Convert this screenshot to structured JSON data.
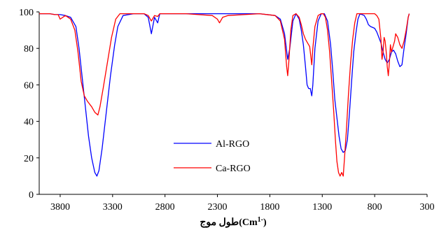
{
  "chart_data": {
    "type": "line",
    "title": "",
    "xlabel": "طول موج(Cm-1)",
    "xlabel_parts": {
      "main": "طول موج(Cm",
      "sup": "1-",
      "close": ")"
    },
    "ylabel": "",
    "xlim": [
      4000,
      300
    ],
    "ylim": [
      0,
      100
    ],
    "x_ticks": [
      3800,
      3300,
      2800,
      2300,
      1800,
      1300,
      800,
      300
    ],
    "y_ticks": [
      0,
      20,
      40,
      60,
      80,
      100
    ],
    "grid": false,
    "legend": "center",
    "series": [
      {
        "name": "Al-RGO",
        "color": "#0000ff",
        "points": [
          [
            4000,
            99
          ],
          [
            3900,
            99
          ],
          [
            3850,
            98.5
          ],
          [
            3800,
            98.5
          ],
          [
            3750,
            98
          ],
          [
            3700,
            97
          ],
          [
            3650,
            92
          ],
          [
            3620,
            80
          ],
          [
            3590,
            64
          ],
          [
            3560,
            48
          ],
          [
            3530,
            32
          ],
          [
            3500,
            20
          ],
          [
            3470,
            12
          ],
          [
            3450,
            10
          ],
          [
            3430,
            13
          ],
          [
            3400,
            25
          ],
          [
            3360,
            45
          ],
          [
            3320,
            65
          ],
          [
            3280,
            82
          ],
          [
            3250,
            92
          ],
          [
            3200,
            98
          ],
          [
            3100,
            99
          ],
          [
            3000,
            99
          ],
          [
            2960,
            97
          ],
          [
            2930,
            88
          ],
          [
            2900,
            97
          ],
          [
            2870,
            94
          ],
          [
            2850,
            99
          ],
          [
            2700,
            99
          ],
          [
            2400,
            99
          ],
          [
            2100,
            99
          ],
          [
            1900,
            99
          ],
          [
            1750,
            98
          ],
          [
            1700,
            96
          ],
          [
            1660,
            88
          ],
          [
            1630,
            74
          ],
          [
            1610,
            80
          ],
          [
            1580,
            95
          ],
          [
            1550,
            99
          ],
          [
            1520,
            96
          ],
          [
            1500,
            90
          ],
          [
            1480,
            82
          ],
          [
            1460,
            70
          ],
          [
            1445,
            60
          ],
          [
            1430,
            58
          ],
          [
            1415,
            58
          ],
          [
            1400,
            54
          ],
          [
            1390,
            60
          ],
          [
            1370,
            80
          ],
          [
            1340,
            95
          ],
          [
            1310,
            99
          ],
          [
            1280,
            99
          ],
          [
            1250,
            95
          ],
          [
            1220,
            82
          ],
          [
            1200,
            68
          ],
          [
            1180,
            52
          ],
          [
            1160,
            42
          ],
          [
            1140,
            32
          ],
          [
            1120,
            25
          ],
          [
            1100,
            23
          ],
          [
            1080,
            24
          ],
          [
            1060,
            30
          ],
          [
            1040,
            45
          ],
          [
            1020,
            62
          ],
          [
            1000,
            78
          ],
          [
            980,
            88
          ],
          [
            960,
            96
          ],
          [
            940,
            99
          ],
          [
            900,
            98
          ],
          [
            880,
            96
          ],
          [
            860,
            93
          ],
          [
            840,
            92
          ],
          [
            800,
            91
          ],
          [
            780,
            89
          ],
          [
            760,
            86
          ],
          [
            740,
            83
          ],
          [
            720,
            78
          ],
          [
            700,
            74
          ],
          [
            680,
            72
          ],
          [
            660,
            74
          ],
          [
            640,
            78
          ],
          [
            620,
            79
          ],
          [
            600,
            77
          ],
          [
            580,
            73
          ],
          [
            560,
            70
          ],
          [
            540,
            71
          ],
          [
            520,
            80
          ],
          [
            500,
            88
          ],
          [
            480,
            97
          ],
          [
            470,
            99
          ]
        ]
      },
      {
        "name": "Ca-RGO",
        "color": "#ff0000",
        "points": [
          [
            4000,
            99
          ],
          [
            3900,
            99
          ],
          [
            3850,
            98.5
          ],
          [
            3820,
            98.5
          ],
          [
            3800,
            96
          ],
          [
            3750,
            98
          ],
          [
            3700,
            96
          ],
          [
            3660,
            90
          ],
          [
            3630,
            78
          ],
          [
            3600,
            62
          ],
          [
            3570,
            54
          ],
          [
            3540,
            51
          ],
          [
            3500,
            48
          ],
          [
            3470,
            45
          ],
          [
            3440,
            43.5
          ],
          [
            3420,
            48
          ],
          [
            3390,
            58
          ],
          [
            3350,
            72
          ],
          [
            3310,
            86
          ],
          [
            3270,
            96
          ],
          [
            3230,
            99
          ],
          [
            3100,
            99
          ],
          [
            3000,
            99
          ],
          [
            2960,
            98
          ],
          [
            2930,
            95
          ],
          [
            2900,
            98
          ],
          [
            2870,
            97.5
          ],
          [
            2850,
            99
          ],
          [
            2600,
            99
          ],
          [
            2350,
            98
          ],
          [
            2300,
            96
          ],
          [
            2280,
            94
          ],
          [
            2250,
            97
          ],
          [
            2200,
            98
          ],
          [
            1900,
            99
          ],
          [
            1750,
            98
          ],
          [
            1700,
            95
          ],
          [
            1660,
            85
          ],
          [
            1640,
            70
          ],
          [
            1630,
            65
          ],
          [
            1620,
            72
          ],
          [
            1600,
            90
          ],
          [
            1580,
            98
          ],
          [
            1550,
            99
          ],
          [
            1520,
            97
          ],
          [
            1500,
            93
          ],
          [
            1480,
            88
          ],
          [
            1460,
            85
          ],
          [
            1440,
            83
          ],
          [
            1420,
            81
          ],
          [
            1400,
            71
          ],
          [
            1390,
            80
          ],
          [
            1370,
            92
          ],
          [
            1340,
            98
          ],
          [
            1310,
            99
          ],
          [
            1290,
            99
          ],
          [
            1270,
            97
          ],
          [
            1250,
            90
          ],
          [
            1230,
            78
          ],
          [
            1210,
            62
          ],
          [
            1190,
            45
          ],
          [
            1175,
            30
          ],
          [
            1160,
            18
          ],
          [
            1145,
            12
          ],
          [
            1130,
            10
          ],
          [
            1115,
            12
          ],
          [
            1100,
            10
          ],
          [
            1090,
            18
          ],
          [
            1070,
            35
          ],
          [
            1050,
            55
          ],
          [
            1030,
            72
          ],
          [
            1010,
            85
          ],
          [
            990,
            94
          ],
          [
            970,
            99
          ],
          [
            900,
            99
          ],
          [
            800,
            99
          ],
          [
            780,
            98
          ],
          [
            770,
            97
          ],
          [
            760,
            96
          ],
          [
            740,
            85
          ],
          [
            730,
            74
          ],
          [
            720,
            78
          ],
          [
            710,
            86
          ],
          [
            700,
            84
          ],
          [
            690,
            78
          ],
          [
            680,
            70
          ],
          [
            670,
            65
          ],
          [
            660,
            72
          ],
          [
            650,
            82
          ],
          [
            640,
            78
          ],
          [
            630,
            80
          ],
          [
            610,
            84
          ],
          [
            600,
            88
          ],
          [
            580,
            86
          ],
          [
            560,
            82
          ],
          [
            540,
            80
          ],
          [
            520,
            84
          ],
          [
            500,
            90
          ],
          [
            480,
            97
          ],
          [
            470,
            99
          ]
        ]
      }
    ]
  }
}
